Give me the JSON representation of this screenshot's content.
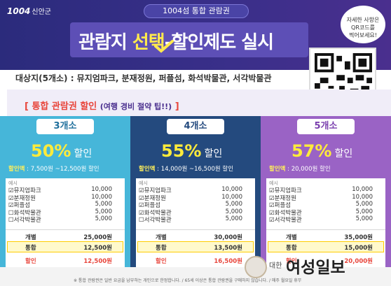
{
  "header": {
    "logo": "1004",
    "region": "신안군",
    "pill": "1004섬 통합 관람권",
    "headline_a": "관람지 ",
    "headline_hl": "선택",
    "headline_b": "-할인제도",
    "headline_c": " 실시",
    "bubble_l1": "자세한 사항은",
    "bubble_l2": "QR코드를",
    "bubble_l3": "찍어보세요!"
  },
  "subtitle": "대상지(5개소) : 뮤지엄파크, 분재정원, 퍼플섬, 화석박물관, 서각박물관",
  "tip": {
    "main": "[ 통합 관람권 할인",
    "sub": "(여행 경비 절약 팁!!)",
    "end": " ]"
  },
  "plans": [
    {
      "badge": "3개소",
      "badge_color": "#1f6f9c",
      "percent": "50%",
      "discount_word": "할인",
      "amount_label": "할인액",
      "amount_range": " : 7,500원 ~12,500원 할인",
      "example": "예시",
      "items": [
        {
          "name": "뮤지엄파크",
          "price": "10,000",
          "checked": true
        },
        {
          "name": "분재정원",
          "price": "10,000",
          "checked": true
        },
        {
          "name": "퍼플섬",
          "price": "5,000",
          "checked": true
        },
        {
          "name": "화석박물관",
          "price": "5,000",
          "checked": false
        },
        {
          "name": "서각박물관",
          "price": "5,000",
          "checked": false
        }
      ],
      "individual_label": "개별",
      "individual_total": "25,000원",
      "combined_label": "통합",
      "combined_price": "12,500원",
      "discount_label": "할인",
      "discount_value": "12,500원"
    },
    {
      "badge": "4개소",
      "badge_color": "#244a7e",
      "percent": "55%",
      "discount_word": "할인",
      "amount_label": "할인액",
      "amount_range": " : 14,000원 ~16,500원 할인",
      "example": "예시",
      "items": [
        {
          "name": "뮤지엄파크",
          "price": "10,000",
          "checked": true
        },
        {
          "name": "분재정원",
          "price": "10,000",
          "checked": true
        },
        {
          "name": "퍼플섬",
          "price": "5,000",
          "checked": true
        },
        {
          "name": "화석박물관",
          "price": "5,000",
          "checked": true
        },
        {
          "name": "서각박물관",
          "price": "5,000",
          "checked": false
        }
      ],
      "individual_label": "개별",
      "individual_total": "30,000원",
      "combined_label": "통합",
      "combined_price": "13,500원",
      "discount_label": "할인",
      "discount_value": "16,500원"
    },
    {
      "badge": "5개소",
      "badge_color": "#7a3fae",
      "percent": "57%",
      "discount_word": "할인",
      "amount_label": "할인액",
      "amount_range": " : 20,000원 할인",
      "example": "예시",
      "items": [
        {
          "name": "뮤지엄파크",
          "price": "10,000",
          "checked": true
        },
        {
          "name": "분재정원",
          "price": "10,000",
          "checked": true
        },
        {
          "name": "퍼플섬",
          "price": "5,000",
          "checked": true
        },
        {
          "name": "화석박물관",
          "price": "5,000",
          "checked": true
        },
        {
          "name": "서각박물관",
          "price": "5,000",
          "checked": true
        }
      ],
      "individual_label": "개별",
      "individual_total": "35,000원",
      "combined_label": "통합",
      "combined_price": "15,000원",
      "discount_label": "할인",
      "discount_value": "20,000원"
    }
  ],
  "footnote": "※ 통합 관람권은 일반 요금을 납부하는 개인으로 한정합니다. / 65세 이상은 통합 관람권을 구매하지 않습니다. / 매주 월요일 휴무",
  "watermark": {
    "small": "대한",
    "big": "여성일보"
  },
  "colors": {
    "header": "#2b2b7c",
    "highlight": "#ffe94d",
    "plan1": "#46b6d9",
    "plan2": "#244a7e",
    "plan3": "#9a63c5"
  },
  "icons": [
    "qr-code-icon",
    "checkmark-icon",
    "checkbox-icon"
  ]
}
